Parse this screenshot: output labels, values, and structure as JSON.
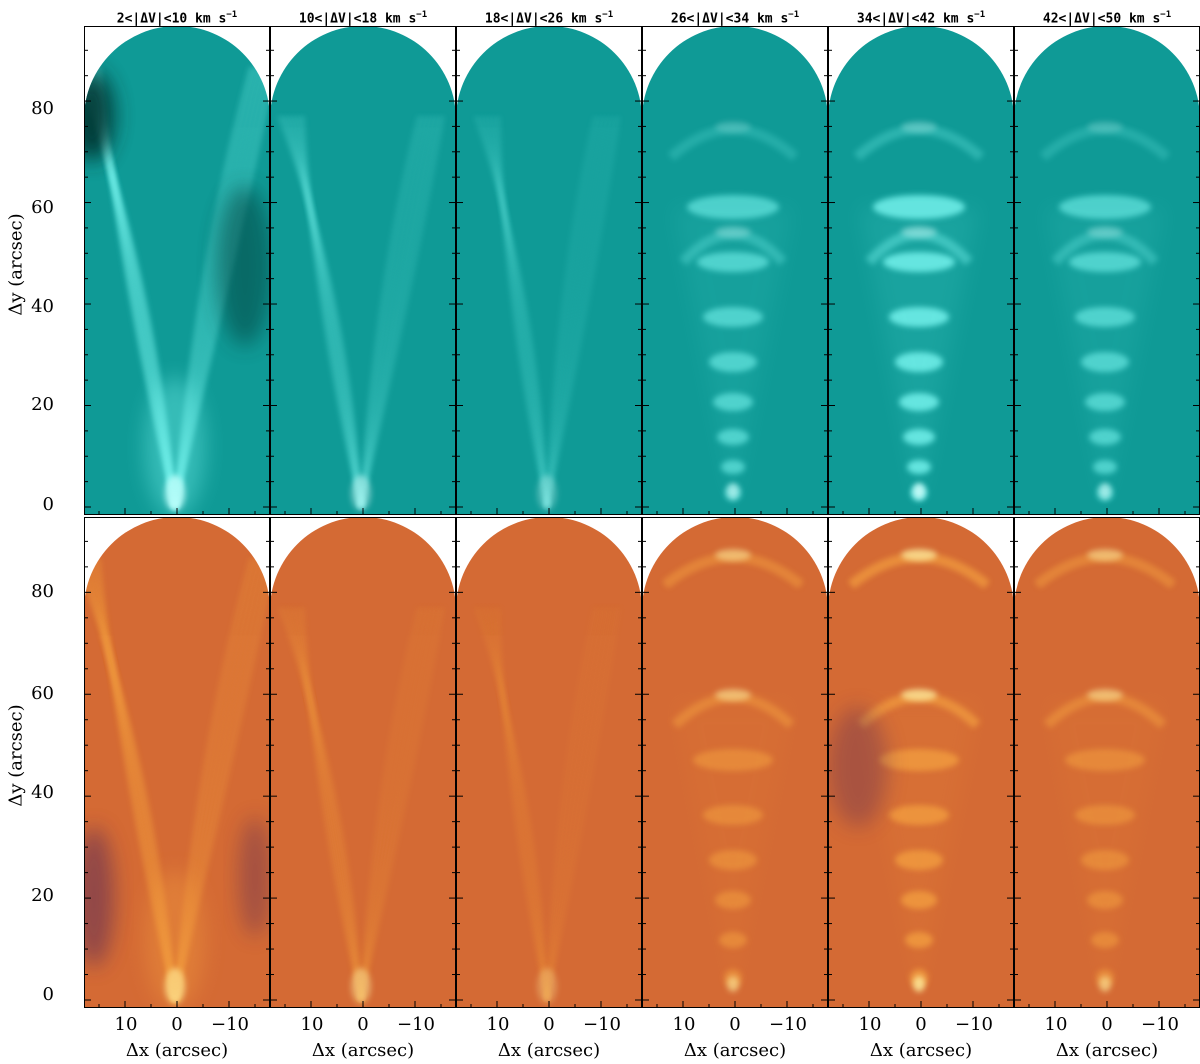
{
  "figure": {
    "columns": [
      {
        "range": "2<|ΔV|<10 km s",
        "exp": "−1"
      },
      {
        "range": "10<|ΔV|<18 km s",
        "exp": "−1"
      },
      {
        "range": "18<|ΔV|<26 km s",
        "exp": "−1"
      },
      {
        "range": "26<|ΔV|<34 km s",
        "exp": "−1"
      },
      {
        "range": "34<|ΔV|<42 km s",
        "exp": "−1"
      },
      {
        "range": "42<|ΔV|<50 km s",
        "exp": "−1"
      }
    ],
    "y_axis_label": "Δy (arcsec)",
    "x_axis_label": "Δx (arcsec)",
    "y_ticks": [
      "0",
      "20",
      "40",
      "60",
      "80"
    ],
    "x_ticks": [
      "10",
      "0",
      "−10"
    ],
    "rows": [
      {
        "name": "top",
        "palette": "cyan",
        "background": "#0f9a96"
      },
      {
        "name": "bottom",
        "palette": "heat",
        "background": "#d46a34"
      }
    ]
  }
}
